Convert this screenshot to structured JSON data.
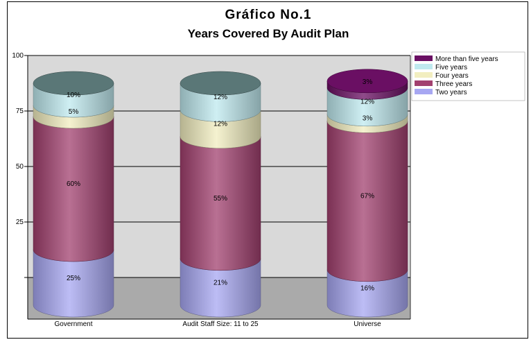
{
  "chart_data": {
    "type": "bar",
    "stacked": true,
    "style": "3d-cylinder",
    "title": "Gráfico No.1",
    "subtitle": "Years Covered By Audit Plan",
    "xlabel": "",
    "ylabel": "",
    "ylim": [
      0,
      100
    ],
    "yticks": [
      {
        "value": 100,
        "label": "100"
      },
      {
        "value": 75,
        "label": "75"
      },
      {
        "value": 50,
        "label": "50"
      },
      {
        "value": 25,
        "label": "25"
      },
      {
        "value": 0,
        "label": ""
      }
    ],
    "grid": true,
    "legend_position": "top-right",
    "categories": [
      "Government",
      "Audit Staff Size: 11 to 25",
      "Universe"
    ],
    "series": [
      {
        "name": "Two years",
        "color": "#a7a7f2",
        "values": [
          25,
          21,
          16
        ],
        "labels": [
          "25%",
          "21%",
          "16%"
        ]
      },
      {
        "name": "Three years",
        "color": "#a2406f",
        "values": [
          60,
          55,
          67
        ],
        "labels": [
          "60%",
          "55%",
          "67%"
        ]
      },
      {
        "name": "Four years",
        "color": "#f2eec0",
        "values": [
          5,
          12,
          3
        ],
        "labels": [
          "5%",
          "12%",
          "3%"
        ]
      },
      {
        "name": "Five years",
        "color": "#bfe9ef",
        "values": [
          10,
          12,
          12
        ],
        "labels": [
          "10%",
          "12%",
          "12%"
        ]
      },
      {
        "name": "More than five years",
        "color": "#6a0f63",
        "values": [
          0,
          0,
          3
        ],
        "labels": [
          "",
          "",
          "3%"
        ]
      }
    ],
    "legend_order": [
      "More than five years",
      "Five years",
      "Four years",
      "Three years",
      "Two years"
    ],
    "colors": {
      "plot_back": "#d9d9d9",
      "plot_floor": "#aaaaaa",
      "cylinder_top": "#5a7777"
    }
  }
}
